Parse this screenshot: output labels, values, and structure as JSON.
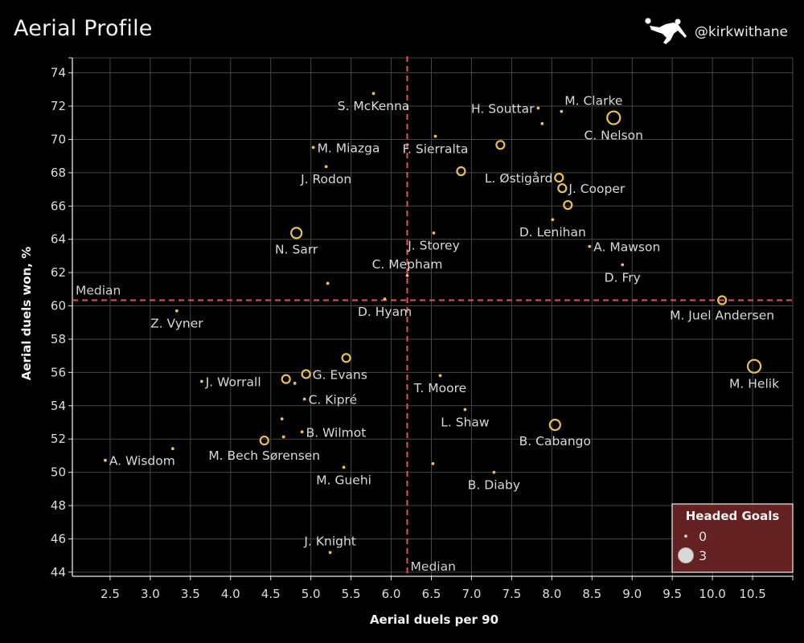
{
  "header": {
    "title": "Aerial Profile",
    "handle": "@kirkwithane",
    "logo_icon": "bicycle-kick-footballer-icon"
  },
  "colors": {
    "background": "#000000",
    "mark": "#e8c15c",
    "median": "#e0525c",
    "grid": "#454545",
    "legend_bg": "#6b2424"
  },
  "chart_data": {
    "type": "scatter",
    "title": "Aerial Profile",
    "xlabel": "Aerial duels per 90",
    "ylabel": "Aerial duels won, %",
    "xlim": [
      2.03,
      11.0
    ],
    "ylim": [
      43.8,
      74.9
    ],
    "xticks": [
      "2.5",
      "3.0",
      "3.5",
      "4.0",
      "4.5",
      "5.0",
      "5.5",
      "6.0",
      "6.5",
      "7.0",
      "7.5",
      "8.0",
      "8.5",
      "9.0",
      "9.5",
      "10.0",
      "10.5"
    ],
    "yticks": [
      "44",
      "46",
      "48",
      "50",
      "52",
      "54",
      "56",
      "58",
      "60",
      "62",
      "64",
      "66",
      "68",
      "70",
      "72",
      "74"
    ],
    "grid": true,
    "size_encoding": "Headed Goals",
    "median": {
      "x": 6.2,
      "y": 60.34,
      "x_label": "Median",
      "y_label": "Median"
    },
    "legend": {
      "title": "Headed Goals",
      "placement": "bottom-right",
      "items": [
        {
          "label": "0",
          "goals": 0
        },
        {
          "label": "3",
          "goals": 3
        }
      ]
    },
    "points": [
      {
        "name": "S. McKenna",
        "x": 5.78,
        "y": 72.76,
        "goals": 0,
        "label_pos": "below"
      },
      {
        "name": "H. Souttar",
        "x": 7.83,
        "y": 71.88,
        "goals": 0,
        "label_pos": "left"
      },
      {
        "name": "M. Clarke",
        "x": 8.12,
        "y": 71.68,
        "goals": 0,
        "label_pos": "above-right"
      },
      {
        "name": "",
        "x": 7.88,
        "y": 70.95,
        "goals": 0,
        "label_pos": "none"
      },
      {
        "name": "C. Nelson",
        "x": 8.77,
        "y": 71.3,
        "goals": 3,
        "label_pos": "below"
      },
      {
        "name": "M. Miazga",
        "x": 5.03,
        "y": 69.52,
        "goals": 0,
        "label_pos": "right"
      },
      {
        "name": "F. Sierralta",
        "x": 6.55,
        "y": 70.19,
        "goals": 0,
        "label_pos": "below"
      },
      {
        "name": "",
        "x": 7.36,
        "y": 69.67,
        "goals": 1,
        "label_pos": "none"
      },
      {
        "name": "J. Rodon",
        "x": 5.19,
        "y": 68.37,
        "goals": 0,
        "label_pos": "below"
      },
      {
        "name": "",
        "x": 6.87,
        "y": 68.09,
        "goals": 1,
        "label_pos": "none"
      },
      {
        "name": "L. Østigård",
        "x": 8.09,
        "y": 67.7,
        "goals": 1,
        "label_pos": "left"
      },
      {
        "name": "J. Cooper",
        "x": 8.13,
        "y": 67.07,
        "goals": 1,
        "label_pos": "right"
      },
      {
        "name": "",
        "x": 8.2,
        "y": 66.06,
        "goals": 1,
        "label_pos": "none"
      },
      {
        "name": "D. Lenihan",
        "x": 8.01,
        "y": 65.18,
        "goals": 0,
        "label_pos": "below"
      },
      {
        "name": "N. Sarr",
        "x": 4.82,
        "y": 64.38,
        "goals": 2,
        "label_pos": "below"
      },
      {
        "name": "J. Storey",
        "x": 6.53,
        "y": 64.38,
        "goals": 0,
        "label_pos": "below"
      },
      {
        "name": "A. Mawson",
        "x": 8.47,
        "y": 63.57,
        "goals": 0,
        "label_pos": "right"
      },
      {
        "name": "D. Fry",
        "x": 8.88,
        "y": 62.47,
        "goals": 0,
        "label_pos": "below"
      },
      {
        "name": "",
        "x": 5.21,
        "y": 61.35,
        "goals": 0,
        "label_pos": "none"
      },
      {
        "name": "C. Mepham",
        "x": 6.2,
        "y": 61.82,
        "goals": 0,
        "label_pos": "above"
      },
      {
        "name": "D. Hyam",
        "x": 5.92,
        "y": 60.41,
        "goals": 0,
        "label_pos": "below"
      },
      {
        "name": "Z. Vyner",
        "x": 3.33,
        "y": 59.7,
        "goals": 0,
        "label_pos": "below"
      },
      {
        "name": "M. Juel Andersen",
        "x": 10.12,
        "y": 60.34,
        "goals": 1,
        "label_pos": "below"
      },
      {
        "name": "M. Helik",
        "x": 10.52,
        "y": 56.37,
        "goals": 3,
        "label_pos": "below"
      },
      {
        "name": "",
        "x": 5.44,
        "y": 56.87,
        "goals": 1,
        "label_pos": "none"
      },
      {
        "name": "J. Worrall",
        "x": 3.64,
        "y": 55.46,
        "goals": 0,
        "label_pos": "right"
      },
      {
        "name": "",
        "x": 4.69,
        "y": 55.6,
        "goals": 1,
        "label_pos": "none"
      },
      {
        "name": "",
        "x": 4.8,
        "y": 55.35,
        "goals": 0,
        "label_pos": "none"
      },
      {
        "name": "G. Evans",
        "x": 4.94,
        "y": 55.9,
        "goals": 1,
        "label_pos": "right"
      },
      {
        "name": "T. Moore",
        "x": 6.61,
        "y": 55.81,
        "goals": 0,
        "label_pos": "below"
      },
      {
        "name": "C. Kipré",
        "x": 4.92,
        "y": 54.4,
        "goals": 0,
        "label_pos": "right"
      },
      {
        "name": "L. Shaw",
        "x": 6.92,
        "y": 53.77,
        "goals": 0,
        "label_pos": "below"
      },
      {
        "name": "",
        "x": 4.64,
        "y": 53.21,
        "goals": 0,
        "label_pos": "none"
      },
      {
        "name": "B. Cabango",
        "x": 8.04,
        "y": 52.85,
        "goals": 2,
        "label_pos": "below"
      },
      {
        "name": "B. Wilmot",
        "x": 4.89,
        "y": 52.43,
        "goals": 0,
        "label_pos": "right"
      },
      {
        "name": "",
        "x": 4.66,
        "y": 52.13,
        "goals": 0,
        "label_pos": "none"
      },
      {
        "name": "M. Bech Sørensen",
        "x": 4.42,
        "y": 51.91,
        "goals": 1,
        "label_pos": "below"
      },
      {
        "name": "",
        "x": 3.28,
        "y": 51.42,
        "goals": 0,
        "label_pos": "none"
      },
      {
        "name": "A. Wisdom",
        "x": 2.44,
        "y": 50.72,
        "goals": 0,
        "label_pos": "right"
      },
      {
        "name": "",
        "x": 6.52,
        "y": 50.52,
        "goals": 0,
        "label_pos": "none"
      },
      {
        "name": "M. Guehi",
        "x": 5.41,
        "y": 50.3,
        "goals": 0,
        "label_pos": "below"
      },
      {
        "name": "B. Diaby",
        "x": 7.28,
        "y": 50.0,
        "goals": 0,
        "label_pos": "below"
      },
      {
        "name": "J. Knight",
        "x": 5.24,
        "y": 45.18,
        "goals": 0,
        "label_pos": "above"
      }
    ]
  }
}
